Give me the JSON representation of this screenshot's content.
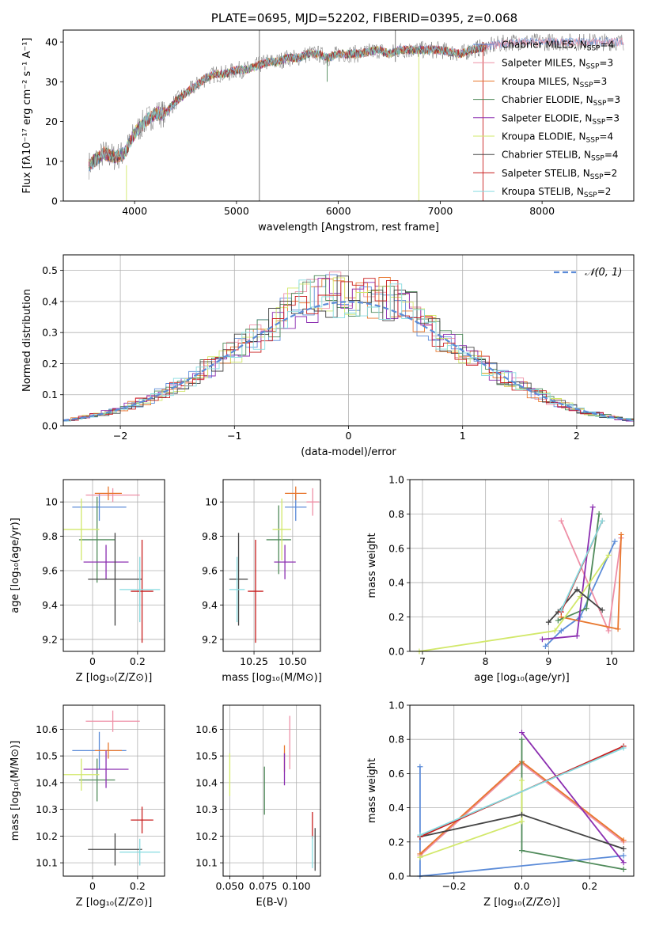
{
  "colors": {
    "chabrier_miles": "#5b8bd8",
    "salpeter_miles": "#ee8fa6",
    "kroupa_miles": "#e8772e",
    "chabrier_elodie": "#4f8a5a",
    "salpeter_elodie": "#8b2eb0",
    "kroupa_elodie": "#d2e86a",
    "chabrier_stelib": "#444444",
    "salpeter_stelib": "#c81e1e",
    "kroupa_stelib": "#86dbe0",
    "grid": "#b0b0b0"
  },
  "chart_data": [
    {
      "id": "spectrum",
      "type": "line",
      "title": "PLATE=0695, MJD=52202, FIBERID=0395, z=0.068",
      "xlabel": "wavelength [Angstrom, rest frame]",
      "ylabel": "Flux [fλ10⁻¹⁷ erg cm⁻² s⁻¹ A⁻¹]",
      "xlim": [
        3300,
        8900
      ],
      "ylim": [
        0,
        43
      ],
      "xticks": [
        4000,
        5000,
        6000,
        7000,
        8000
      ],
      "yticks": [
        0,
        10,
        20,
        30,
        40
      ],
      "grid": false,
      "legend_position": "upper right",
      "continuum": [
        [
          3550,
          9
        ],
        [
          3700,
          12
        ],
        [
          3800,
          11
        ],
        [
          3900,
          12
        ],
        [
          4000,
          17
        ],
        [
          4100,
          20
        ],
        [
          4200,
          22
        ],
        [
          4300,
          22
        ],
        [
          4400,
          25
        ],
        [
          4500,
          27
        ],
        [
          4600,
          29
        ],
        [
          4700,
          31
        ],
        [
          4800,
          32
        ],
        [
          4900,
          32
        ],
        [
          5000,
          33
        ],
        [
          5100,
          33
        ],
        [
          5200,
          34
        ],
        [
          5300,
          35
        ],
        [
          5400,
          35
        ],
        [
          5500,
          36
        ],
        [
          5600,
          36
        ],
        [
          5700,
          37
        ],
        [
          5800,
          37
        ],
        [
          5900,
          36
        ],
        [
          6000,
          37
        ],
        [
          6200,
          37
        ],
        [
          6400,
          38
        ],
        [
          6500,
          37
        ],
        [
          6600,
          38
        ],
        [
          6800,
          38
        ],
        [
          7000,
          38
        ],
        [
          7200,
          37
        ],
        [
          7300,
          38
        ],
        [
          7500,
          39
        ],
        [
          7700,
          40
        ],
        [
          7900,
          40
        ],
        [
          8100,
          40
        ],
        [
          8300,
          40
        ],
        [
          8500,
          40
        ],
        [
          8800,
          40
        ]
      ],
      "series": [
        {
          "name": "Chabrier MILES, N_SSP=4",
          "color_key": "chabrier_miles"
        },
        {
          "name": "Salpeter MILES, N_SSP=3",
          "color_key": "salpeter_miles"
        },
        {
          "name": "Kroupa MILES, N_SSP=3",
          "color_key": "kroupa_miles"
        },
        {
          "name": "Chabrier ELODIE, N_SSP=3",
          "color_key": "chabrier_elodie"
        },
        {
          "name": "Salpeter ELODIE, N_SSP=3",
          "color_key": "salpeter_elodie"
        },
        {
          "name": "Kroupa ELODIE, N_SSP=4",
          "color_key": "kroupa_elodie"
        },
        {
          "name": "Chabrier STELIB, N_SSP=4",
          "color_key": "chabrier_stelib"
        },
        {
          "name": "Salpeter STELIB, N_SSP=2",
          "color_key": "salpeter_stelib"
        },
        {
          "name": "Kroupa STELIB, N_SSP=2",
          "color_key": "kroupa_stelib"
        }
      ]
    },
    {
      "id": "histogram",
      "type": "bar",
      "xlabel": "(data-model)/error",
      "ylabel": "Normed distribution",
      "xlim": [
        -2.5,
        2.5
      ],
      "ylim": [
        0,
        0.55
      ],
      "xticks": [
        -2,
        -1,
        0,
        1,
        2
      ],
      "xticklabels": [
        "−2",
        "−1",
        "0",
        "1",
        "2"
      ],
      "yticks": [
        0.0,
        0.1,
        0.2,
        0.3,
        0.4,
        0.5
      ],
      "grid": true,
      "legend_position": "upper right",
      "reference": {
        "name": "𝒩(0, 1)",
        "mean": 0,
        "sigma": 1,
        "color_key": "chabrier_miles"
      },
      "bin_width": 0.1,
      "series_colors": [
        "chabrier_miles",
        "salpeter_miles",
        "kroupa_miles",
        "chabrier_elodie",
        "salpeter_elodie",
        "kroupa_elodie",
        "chabrier_stelib",
        "salpeter_stelib",
        "kroupa_stelib"
      ]
    },
    {
      "id": "age_vs_z",
      "type": "scatter",
      "xlabel": "Z [log₁₀(Z/Z⊙)]",
      "ylabel": "age  [log₁₀(age/yr)]",
      "xlim": [
        -0.13,
        0.32
      ],
      "ylim": [
        9.13,
        10.13
      ],
      "xticks": [
        0.0,
        0.2
      ],
      "yticks": [
        9.2,
        9.4,
        9.6,
        9.8,
        10.0
      ],
      "grid": true,
      "points": [
        {
          "c": "chabrier_miles",
          "x": 0.03,
          "xerr": 0.12,
          "y": 9.97,
          "yerr": 0.08
        },
        {
          "c": "salpeter_miles",
          "x": 0.09,
          "xerr": 0.12,
          "y": 10.04,
          "yerr": 0.04
        },
        {
          "c": "kroupa_miles",
          "x": 0.07,
          "xerr": 0.06,
          "y": 10.05,
          "yerr": 0.04
        },
        {
          "c": "chabrier_elodie",
          "x": 0.02,
          "xerr": 0.08,
          "y": 9.78,
          "yerr": 0.25
        },
        {
          "c": "salpeter_elodie",
          "x": 0.06,
          "xerr": 0.1,
          "y": 9.65,
          "yerr": 0.1
        },
        {
          "c": "kroupa_elodie",
          "x": -0.05,
          "xerr": 0.08,
          "y": 9.84,
          "yerr": 0.18
        },
        {
          "c": "chabrier_stelib",
          "x": 0.1,
          "xerr": 0.12,
          "y": 9.55,
          "yerr": 0.27
        },
        {
          "c": "salpeter_stelib",
          "x": 0.22,
          "xerr": 0.05,
          "y": 9.48,
          "yerr": 0.3
        },
        {
          "c": "kroupa_stelib",
          "x": 0.21,
          "xerr": 0.09,
          "y": 9.49,
          "yerr": 0.19
        }
      ]
    },
    {
      "id": "age_vs_mass",
      "type": "scatter",
      "xlabel": "mass [log₁₀(M/M⊙)]",
      "ylabel": "",
      "xlim": [
        10.05,
        10.68
      ],
      "ylim": [
        9.13,
        10.13
      ],
      "xticks": [
        10.25,
        10.5
      ],
      "xticklabels": [
        "10.25",
        "10.50"
      ],
      "yticks": [
        9.2,
        9.4,
        9.6,
        9.8,
        10.0
      ],
      "grid": true,
      "points": [
        {
          "c": "chabrier_miles",
          "x": 10.52,
          "xerr": 0.07,
          "y": 9.97,
          "yerr": 0.08
        },
        {
          "c": "salpeter_miles",
          "x": 10.63,
          "xerr": 0.04,
          "y": 10.0,
          "yerr": 0.08
        },
        {
          "c": "kroupa_miles",
          "x": 10.52,
          "xerr": 0.07,
          "y": 10.05,
          "yerr": 0.04
        },
        {
          "c": "chabrier_elodie",
          "x": 10.41,
          "xerr": 0.08,
          "y": 9.78,
          "yerr": 0.2
        },
        {
          "c": "salpeter_elodie",
          "x": 10.45,
          "xerr": 0.07,
          "y": 9.65,
          "yerr": 0.1
        },
        {
          "c": "kroupa_elodie",
          "x": 10.43,
          "xerr": 0.06,
          "y": 9.84,
          "yerr": 0.18
        },
        {
          "c": "chabrier_stelib",
          "x": 10.15,
          "xerr": 0.06,
          "y": 9.55,
          "yerr": 0.27
        },
        {
          "c": "salpeter_stelib",
          "x": 10.26,
          "xerr": 0.05,
          "y": 9.48,
          "yerr": 0.3
        },
        {
          "c": "kroupa_stelib",
          "x": 10.14,
          "xerr": 0.05,
          "y": 9.49,
          "yerr": 0.19
        }
      ]
    },
    {
      "id": "weight_vs_age",
      "type": "line",
      "xlabel": "age  [log₁₀(age/yr)]",
      "ylabel": "mass weight",
      "xlim": [
        6.8,
        10.35
      ],
      "ylim": [
        0,
        1
      ],
      "xticks": [
        7,
        8,
        9,
        10
      ],
      "yticks": [
        0.0,
        0.2,
        0.4,
        0.6,
        0.8,
        1.0
      ],
      "grid": true,
      "series": [
        {
          "c": "chabrier_miles",
          "points": [
            [
              8.95,
              0.03
            ],
            [
              9.2,
              0.12
            ],
            [
              9.5,
              0.2
            ],
            [
              10.05,
              0.64
            ]
          ]
        },
        {
          "c": "salpeter_miles",
          "points": [
            [
              9.2,
              0.76
            ],
            [
              9.95,
              0.12
            ],
            [
              10.15,
              0.66
            ]
          ]
        },
        {
          "c": "kroupa_miles",
          "points": [
            [
              9.2,
              0.2
            ],
            [
              10.1,
              0.13
            ],
            [
              10.15,
              0.68
            ]
          ]
        },
        {
          "c": "chabrier_elodie",
          "points": [
            [
              9.15,
              0.18
            ],
            [
              9.6,
              0.25
            ],
            [
              9.8,
              0.8
            ]
          ]
        },
        {
          "c": "salpeter_elodie",
          "points": [
            [
              8.9,
              0.07
            ],
            [
              9.45,
              0.09
            ],
            [
              9.7,
              0.84
            ]
          ]
        },
        {
          "c": "kroupa_elodie",
          "points": [
            [
              6.95,
              0.0
            ],
            [
              9.1,
              0.12
            ],
            [
              9.5,
              0.32
            ],
            [
              9.95,
              0.56
            ]
          ]
        },
        {
          "c": "chabrier_stelib",
          "points": [
            [
              9.0,
              0.17
            ],
            [
              9.15,
              0.23
            ],
            [
              9.45,
              0.36
            ],
            [
              9.85,
              0.24
            ]
          ]
        },
        {
          "c": "salpeter_stelib",
          "points": [
            [
              9.2,
              0.23
            ],
            [
              9.85,
              0.76
            ]
          ]
        },
        {
          "c": "kroupa_stelib",
          "points": [
            [
              9.2,
              0.24
            ],
            [
              9.85,
              0.76
            ]
          ]
        }
      ]
    },
    {
      "id": "mass_vs_z",
      "type": "scatter",
      "xlabel": "Z [log₁₀(Z/Z⊙)]",
      "ylabel": "mass [log₁₀(M/M⊙)]",
      "xlim": [
        -0.13,
        0.32
      ],
      "ylim": [
        10.05,
        10.69
      ],
      "xticks": [
        0.0,
        0.2
      ],
      "yticks": [
        10.1,
        10.2,
        10.3,
        10.4,
        10.5,
        10.6
      ],
      "grid": true,
      "points": [
        {
          "c": "chabrier_miles",
          "x": 0.03,
          "xerr": 0.12,
          "y": 10.52,
          "yerr": 0.07
        },
        {
          "c": "salpeter_miles",
          "x": 0.09,
          "xerr": 0.12,
          "y": 10.63,
          "yerr": 0.04
        },
        {
          "c": "kroupa_miles",
          "x": 0.07,
          "xerr": 0.06,
          "y": 10.52,
          "yerr": 0.03
        },
        {
          "c": "chabrier_elodie",
          "x": 0.02,
          "xerr": 0.08,
          "y": 10.41,
          "yerr": 0.08
        },
        {
          "c": "salpeter_elodie",
          "x": 0.06,
          "xerr": 0.1,
          "y": 10.45,
          "yerr": 0.07
        },
        {
          "c": "kroupa_elodie",
          "x": -0.05,
          "xerr": 0.08,
          "y": 10.43,
          "yerr": 0.06
        },
        {
          "c": "chabrier_stelib",
          "x": 0.1,
          "xerr": 0.12,
          "y": 10.15,
          "yerr": 0.06
        },
        {
          "c": "salpeter_stelib",
          "x": 0.22,
          "xerr": 0.05,
          "y": 10.26,
          "yerr": 0.05
        },
        {
          "c": "kroupa_stelib",
          "x": 0.21,
          "xerr": 0.09,
          "y": 10.14,
          "yerr": 0.05
        }
      ]
    },
    {
      "id": "mass_vs_ebv",
      "type": "scatter",
      "xlabel": "E(B-V)",
      "ylabel": "",
      "xlim": [
        0.045,
        0.118
      ],
      "ylim": [
        10.05,
        10.69
      ],
      "xticks": [
        0.05,
        0.075,
        0.1
      ],
      "xticklabels": [
        "0.050",
        "0.075",
        "0.100"
      ],
      "yticks": [
        10.1,
        10.2,
        10.3,
        10.4,
        10.5,
        10.6
      ],
      "grid": true,
      "points": [
        {
          "c": "salpeter_miles",
          "x": 0.095,
          "xerr": 0,
          "y": 10.55,
          "yerr": 0.1
        },
        {
          "c": "kroupa_miles",
          "x": 0.091,
          "xerr": 0,
          "y": 10.49,
          "yerr": 0.05
        },
        {
          "c": "salpeter_elodie",
          "x": 0.091,
          "xerr": 0,
          "y": 10.45,
          "yerr": 0.06
        },
        {
          "c": "chabrier_elodie",
          "x": 0.076,
          "xerr": 0,
          "y": 10.37,
          "yerr": 0.09
        },
        {
          "c": "kroupa_elodie",
          "x": 0.05,
          "xerr": 0,
          "y": 10.43,
          "yerr": 0.08
        },
        {
          "c": "salpeter_stelib",
          "x": 0.112,
          "xerr": 0,
          "y": 10.24,
          "yerr": 0.05
        },
        {
          "c": "chabrier_stelib",
          "x": 0.114,
          "xerr": 0,
          "y": 10.15,
          "yerr": 0.08
        },
        {
          "c": "kroupa_stelib",
          "x": 0.112,
          "xerr": 0,
          "y": 10.14,
          "yerr": 0.06
        }
      ]
    },
    {
      "id": "weight_vs_z",
      "type": "line",
      "xlabel": "Z [log₁₀(Z/Z⊙)]",
      "ylabel": "mass weight",
      "xlim": [
        -0.33,
        0.33
      ],
      "ylim": [
        0,
        1
      ],
      "xticks": [
        -0.2,
        0.0,
        0.2
      ],
      "xticklabels": [
        "−0.2",
        "0.0",
        "0.2"
      ],
      "yticks": [
        0.0,
        0.2,
        0.4,
        0.6,
        0.8,
        1.0
      ],
      "grid": true,
      "series": [
        {
          "c": "chabrier_miles",
          "points": [
            [
              -0.3,
              0.64
            ],
            [
              -0.3,
              0.0
            ],
            [
              0.3,
              0.12
            ]
          ]
        },
        {
          "c": "salpeter_miles",
          "points": [
            [
              -0.3,
              0.12
            ],
            [
              0.0,
              0.66
            ],
            [
              0.3,
              0.2
            ]
          ]
        },
        {
          "c": "kroupa_miles",
          "points": [
            [
              -0.3,
              0.13
            ],
            [
              0.0,
              0.67
            ],
            [
              0.3,
              0.21
            ]
          ]
        },
        {
          "c": "chabrier_elodie",
          "points": [
            [
              0.0,
              0.8
            ],
            [
              0.0,
              0.15
            ],
            [
              0.3,
              0.04
            ]
          ]
        },
        {
          "c": "salpeter_elodie",
          "points": [
            [
              0.0,
              0.84
            ],
            [
              0.3,
              0.08
            ]
          ]
        },
        {
          "c": "kroupa_elodie",
          "points": [
            [
              -0.3,
              0.11
            ],
            [
              0.0,
              0.32
            ],
            [
              0.0,
              0.56
            ]
          ]
        },
        {
          "c": "chabrier_stelib",
          "points": [
            [
              -0.3,
              0.23
            ],
            [
              0.0,
              0.36
            ],
            [
              0.3,
              0.16
            ]
          ]
        },
        {
          "c": "salpeter_stelib",
          "points": [
            [
              -0.3,
              0.23
            ],
            [
              0.3,
              0.76
            ]
          ]
        },
        {
          "c": "kroupa_stelib",
          "points": [
            [
              -0.3,
              0.24
            ],
            [
              0.3,
              0.75
            ]
          ]
        }
      ]
    }
  ]
}
